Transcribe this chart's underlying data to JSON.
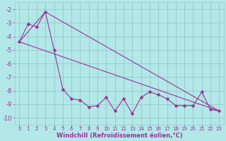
{
  "xlabel": "Windchill (Refroidissement éolien,°C)",
  "background_color": "#b3e8e8",
  "grid_color": "#99cccc",
  "line_color": "#993399",
  "xlim": [
    -0.5,
    23.5
  ],
  "ylim": [
    -10.5,
    -1.5
  ],
  "yticks": [
    -2,
    -3,
    -4,
    -5,
    -6,
    -7,
    -8,
    -9,
    -10
  ],
  "xticks": [
    0,
    1,
    2,
    3,
    4,
    5,
    6,
    7,
    8,
    9,
    10,
    11,
    12,
    13,
    14,
    15,
    16,
    17,
    18,
    19,
    20,
    21,
    22,
    23
  ],
  "series1_x": [
    0,
    1,
    2,
    3,
    4,
    5,
    6,
    7,
    8,
    9,
    10,
    11,
    12,
    13,
    14,
    15,
    16,
    17,
    18,
    19,
    20,
    21,
    22,
    23
  ],
  "series1_y": [
    -4.4,
    -3.1,
    -3.3,
    -2.2,
    -5.0,
    -7.9,
    -8.6,
    -8.7,
    -9.2,
    -9.1,
    -8.5,
    -9.5,
    -8.6,
    -9.7,
    -8.5,
    -8.1,
    -8.3,
    -8.6,
    -9.1,
    -9.1,
    -9.1,
    -8.1,
    -9.4,
    -9.5
  ],
  "series2_x": [
    0,
    3,
    23
  ],
  "series2_y": [
    -4.4,
    -2.2,
    -9.5
  ],
  "series3_x": [
    0,
    23
  ],
  "series3_y": [
    -4.4,
    -9.5
  ],
  "xlabel_fontsize": 6,
  "xlabel_fontweight": "bold",
  "ytick_fontsize": 6,
  "xtick_fontsize": 5
}
